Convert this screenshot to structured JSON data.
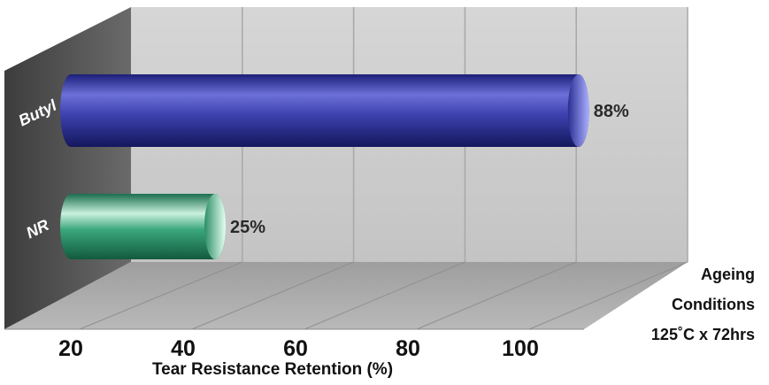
{
  "chart_data": {
    "type": "bar",
    "orientation": "horizontal",
    "categories": [
      "Butyl",
      "NR"
    ],
    "values": [
      88,
      25
    ],
    "value_labels": [
      "88%",
      "25%"
    ],
    "colors": [
      "#3a3fa8",
      "#2f9a72"
    ],
    "title": "",
    "xlabel": "Tear Resistance Retention (%)",
    "ylabel": "",
    "xticks": [
      "20",
      "40",
      "60",
      "80",
      "100"
    ],
    "xlim": [
      0,
      100
    ],
    "grid": true,
    "annotation": {
      "lines": [
        "Ageing",
        "Conditions",
        "125˚C x 72hrs"
      ]
    }
  }
}
